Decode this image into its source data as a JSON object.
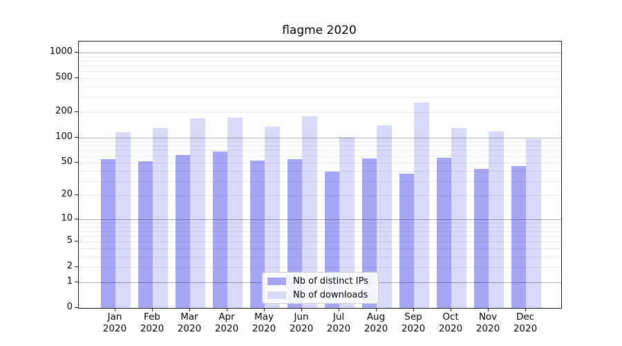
{
  "chart_data": {
    "type": "bar",
    "title": "flagme 2020",
    "categories": [
      "Jan 2020",
      "Feb 2020",
      "Mar 2020",
      "Apr 2020",
      "May 2020",
      "Jun 2020",
      "Jul 2020",
      "Aug 2020",
      "Sep 2020",
      "Oct 2020",
      "Nov 2020",
      "Dec 2020"
    ],
    "series": [
      {
        "name": "Nb of distinct IPs",
        "color": "#a6a6f5",
        "values": [
          55,
          52,
          62,
          68,
          53,
          55,
          39,
          56,
          37,
          57,
          42,
          45
        ]
      },
      {
        "name": "Nb of downloads",
        "color": "#d9d9f8",
        "values": [
          116,
          130,
          168,
          171,
          134,
          178,
          100,
          140,
          257,
          130,
          117,
          96
        ]
      }
    ],
    "xlabel": "",
    "ylabel": "",
    "y_scale": "log10(value+1)",
    "ylim": [
      0,
      1350
    ],
    "y_ticks_labeled": [
      0,
      1,
      2,
      5,
      10,
      20,
      50,
      100,
      200,
      500,
      1000
    ],
    "y_major_gridlines": [
      1,
      10,
      100,
      1000
    ],
    "y_minor_gridlines": [
      2,
      3,
      4,
      5,
      6,
      7,
      8,
      9,
      20,
      30,
      40,
      50,
      60,
      70,
      80,
      90,
      200,
      300,
      400,
      500,
      600,
      700,
      800,
      900
    ],
    "grid": true,
    "legend_position": "lower center"
  }
}
